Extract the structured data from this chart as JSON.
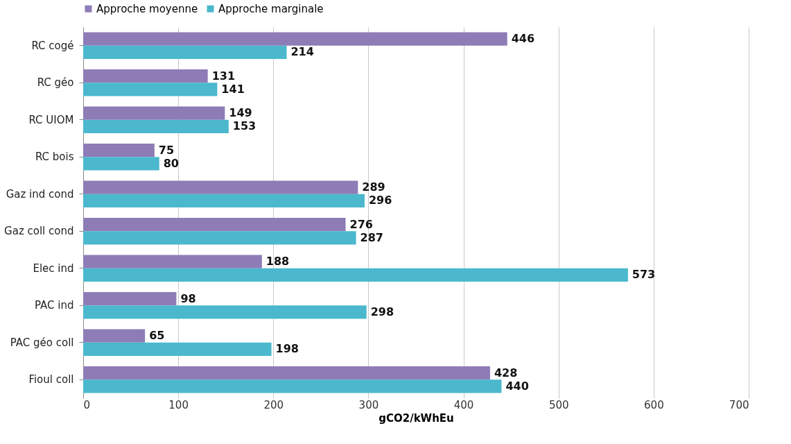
{
  "chart_data": {
    "type": "bar",
    "orientation": "horizontal",
    "xlabel": "gCO2/kWhEu",
    "categories": [
      "RC cogé",
      "RC géo",
      "RC UIOM",
      "RC bois",
      "Gaz ind cond",
      "Gaz coll cond",
      "Elec ind",
      "PAC ind",
      "PAC géo coll",
      "Fioul coll"
    ],
    "series": [
      {
        "name": "Approche moyenne",
        "color": "#8e7cb6",
        "values": [
          446,
          131,
          149,
          75,
          289,
          276,
          188,
          98,
          65,
          428
        ]
      },
      {
        "name": "Approche marginale",
        "color": "#4bb8cd",
        "values": [
          214,
          141,
          153,
          80,
          296,
          287,
          573,
          298,
          198,
          440
        ]
      }
    ],
    "xlim": [
      0,
      700
    ],
    "xticks": [
      0,
      100,
      200,
      300,
      400,
      500,
      600,
      700
    ],
    "grid": "x",
    "legend": "top",
    "data_labels": true
  }
}
